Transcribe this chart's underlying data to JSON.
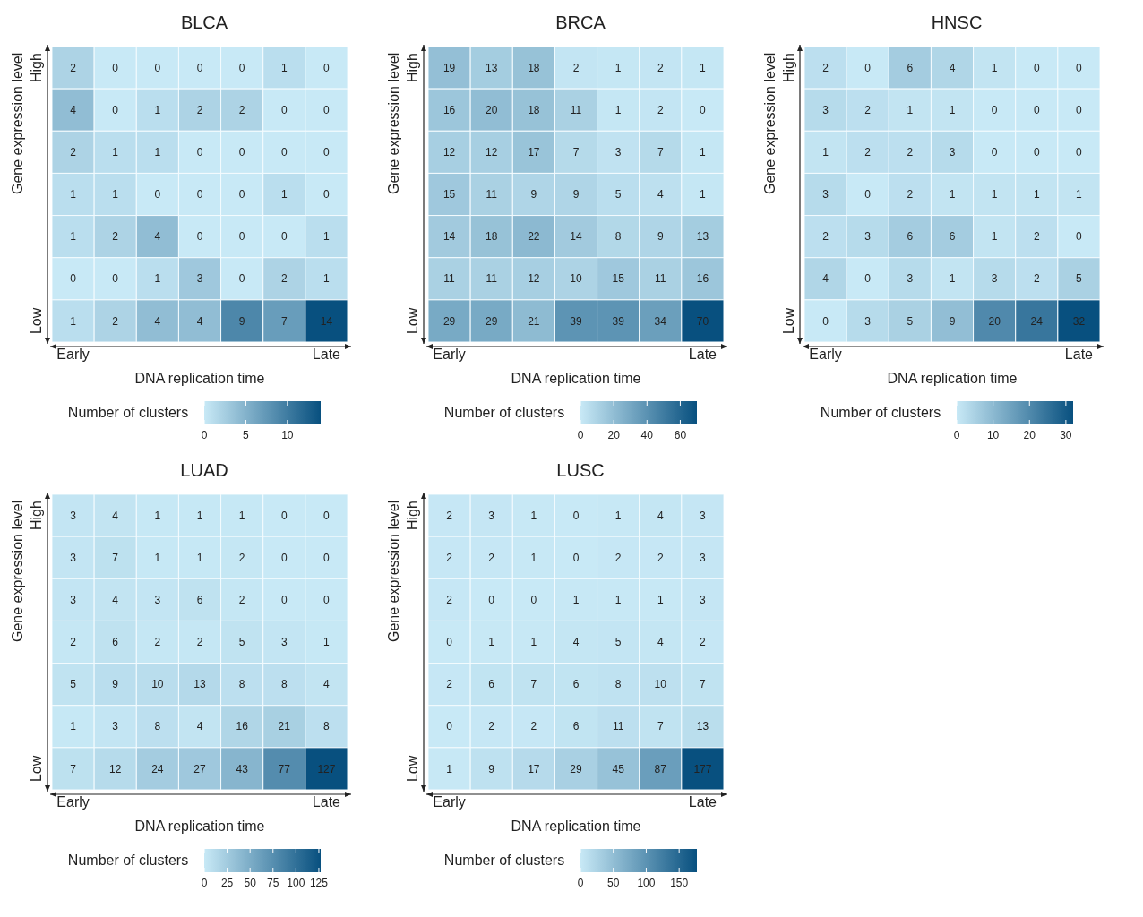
{
  "chart_data": [
    {
      "type": "heatmap",
      "title": "BLCA",
      "xlabel": "DNA replication time",
      "ylabel": "Gene expression level",
      "clabel": "Number of clusters",
      "data_labels": true,
      "categories": [
        "Early",
        null,
        null,
        null,
        null,
        null,
        "Late"
      ],
      "y_categories": [
        "High",
        null,
        null,
        null,
        null,
        null,
        "Low"
      ],
      "cells": [
        [
          2,
          0,
          0,
          0,
          0,
          1,
          0
        ],
        [
          4,
          0,
          1,
          2,
          2,
          0,
          0
        ],
        [
          2,
          1,
          1,
          0,
          0,
          0,
          0
        ],
        [
          1,
          1,
          0,
          0,
          0,
          1,
          0
        ],
        [
          1,
          2,
          4,
          0,
          0,
          0,
          1
        ],
        [
          0,
          0,
          1,
          3,
          0,
          2,
          1
        ],
        [
          1,
          2,
          4,
          4,
          9,
          7,
          14
        ]
      ],
      "clim": [
        0,
        14
      ],
      "cticks": [
        0,
        5,
        10
      ]
    },
    {
      "type": "heatmap",
      "title": "BRCA",
      "xlabel": "DNA replication time",
      "ylabel": "Gene expression level",
      "clabel": "Number of clusters",
      "data_labels": true,
      "categories": [
        "Early",
        null,
        null,
        null,
        null,
        null,
        "Late"
      ],
      "y_categories": [
        "High",
        null,
        null,
        null,
        null,
        null,
        "Low"
      ],
      "cells": [
        [
          19,
          13,
          18,
          2,
          1,
          2,
          1
        ],
        [
          16,
          20,
          18,
          11,
          1,
          2,
          0
        ],
        [
          12,
          12,
          17,
          7,
          3,
          7,
          1
        ],
        [
          15,
          11,
          9,
          9,
          5,
          4,
          1
        ],
        [
          14,
          18,
          22,
          14,
          8,
          9,
          13
        ],
        [
          11,
          11,
          12,
          10,
          15,
          11,
          16
        ],
        [
          29,
          29,
          21,
          39,
          39,
          34,
          70
        ]
      ],
      "clim": [
        0,
        70
      ],
      "cticks": [
        0,
        20,
        40,
        60
      ]
    },
    {
      "type": "heatmap",
      "title": "HNSC",
      "xlabel": "DNA replication time",
      "ylabel": "Gene expression level",
      "clabel": "Number of clusters",
      "data_labels": true,
      "categories": [
        "Early",
        null,
        null,
        null,
        null,
        null,
        "Late"
      ],
      "y_categories": [
        "High",
        null,
        null,
        null,
        null,
        null,
        "Low"
      ],
      "cells": [
        [
          2,
          0,
          6,
          4,
          1,
          0,
          0
        ],
        [
          3,
          2,
          1,
          1,
          0,
          0,
          0
        ],
        [
          1,
          2,
          2,
          3,
          0,
          0,
          0
        ],
        [
          3,
          0,
          2,
          1,
          1,
          1,
          1
        ],
        [
          2,
          3,
          6,
          6,
          1,
          2,
          0
        ],
        [
          4,
          0,
          3,
          1,
          3,
          2,
          5
        ],
        [
          0,
          3,
          5,
          9,
          20,
          24,
          32
        ]
      ],
      "clim": [
        0,
        32
      ],
      "cticks": [
        0,
        10,
        20,
        30
      ]
    },
    {
      "type": "heatmap",
      "title": "LUAD",
      "xlabel": "DNA replication time",
      "ylabel": "Gene expression level",
      "clabel": "Number of clusters",
      "data_labels": true,
      "categories": [
        "Early",
        null,
        null,
        null,
        null,
        null,
        "Late"
      ],
      "y_categories": [
        "High",
        null,
        null,
        null,
        null,
        null,
        "Low"
      ],
      "cells": [
        [
          3,
          4,
          1,
          1,
          1,
          0,
          0
        ],
        [
          3,
          7,
          1,
          1,
          2,
          0,
          0
        ],
        [
          3,
          4,
          3,
          6,
          2,
          0,
          0
        ],
        [
          2,
          6,
          2,
          2,
          5,
          3,
          1
        ],
        [
          5,
          9,
          10,
          13,
          8,
          8,
          4
        ],
        [
          1,
          3,
          8,
          4,
          16,
          21,
          8
        ],
        [
          7,
          12,
          24,
          27,
          43,
          77,
          127
        ]
      ],
      "clim": [
        0,
        127
      ],
      "cticks": [
        0,
        25,
        50,
        75,
        100,
        125
      ]
    },
    {
      "type": "heatmap",
      "title": "LUSC",
      "xlabel": "DNA replication time",
      "ylabel": "Gene expression level",
      "clabel": "Number of clusters",
      "data_labels": true,
      "categories": [
        "Early",
        null,
        null,
        null,
        null,
        null,
        "Late"
      ],
      "y_categories": [
        "High",
        null,
        null,
        null,
        null,
        null,
        "Low"
      ],
      "cells": [
        [
          2,
          3,
          1,
          0,
          1,
          4,
          3
        ],
        [
          2,
          2,
          1,
          0,
          2,
          2,
          3
        ],
        [
          2,
          0,
          0,
          1,
          1,
          1,
          3
        ],
        [
          0,
          1,
          1,
          4,
          5,
          4,
          2
        ],
        [
          2,
          6,
          7,
          6,
          8,
          10,
          7
        ],
        [
          0,
          2,
          2,
          6,
          11,
          7,
          13
        ],
        [
          1,
          9,
          17,
          29,
          45,
          87,
          177
        ]
      ],
      "clim": [
        0,
        177
      ],
      "cticks": [
        0,
        50,
        100,
        150
      ]
    }
  ]
}
